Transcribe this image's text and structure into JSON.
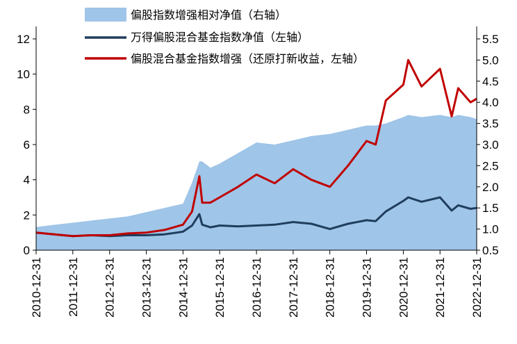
{
  "chart_data": {
    "type": "area",
    "x": [
      "2010-12-31",
      "2011-06-30",
      "2011-12-31",
      "2012-06-30",
      "2012-12-31",
      "2013-06-30",
      "2013-12-31",
      "2014-06-30",
      "2014-12-31",
      "2015-03-31",
      "2015-06-12",
      "2015-07-10",
      "2015-09-30",
      "2015-12-31",
      "2016-06-30",
      "2016-12-31",
      "2017-06-30",
      "2017-12-31",
      "2018-06-30",
      "2018-12-31",
      "2019-06-30",
      "2019-12-31",
      "2020-03-31",
      "2020-07-10",
      "2020-12-31",
      "2021-02-18",
      "2021-06-30",
      "2021-12-31",
      "2022-04-26",
      "2022-06-30",
      "2022-10-31",
      "2022-12-31"
    ],
    "series": [
      {
        "name": "偏股指数增强相对净值（右轴）",
        "axis": "right",
        "color": "#9fc5e8",
        "values": [
          1.05,
          1.1,
          1.15,
          1.2,
          1.25,
          1.3,
          1.4,
          1.5,
          1.6,
          2.1,
          2.6,
          2.6,
          2.45,
          2.55,
          2.8,
          3.05,
          3.0,
          3.1,
          3.2,
          3.25,
          3.35,
          3.45,
          3.45,
          3.5,
          3.65,
          3.7,
          3.65,
          3.7,
          3.65,
          3.7,
          3.65,
          3.6
        ]
      },
      {
        "name": "万得偏股混合基金指数净值（左轴）",
        "axis": "left",
        "color": "#1f3d5c",
        "values": [
          1.0,
          0.9,
          0.8,
          0.85,
          0.8,
          0.85,
          0.85,
          0.9,
          1.05,
          1.4,
          2.05,
          1.45,
          1.3,
          1.4,
          1.35,
          1.4,
          1.45,
          1.6,
          1.5,
          1.2,
          1.5,
          1.7,
          1.65,
          2.2,
          2.8,
          3.0,
          2.75,
          3.0,
          2.25,
          2.55,
          2.35,
          2.4
        ]
      },
      {
        "name": "偏股混合基金指数增强（还原打新收益，左轴）",
        "axis": "left",
        "color": "#c00000",
        "values": [
          1.0,
          0.9,
          0.8,
          0.85,
          0.85,
          0.95,
          1.0,
          1.15,
          1.45,
          2.2,
          4.2,
          2.7,
          2.7,
          3.0,
          3.6,
          4.3,
          3.8,
          4.6,
          4.0,
          3.6,
          4.8,
          6.2,
          6.0,
          8.5,
          9.4,
          10.8,
          9.3,
          10.3,
          7.6,
          9.2,
          8.4,
          8.6
        ]
      }
    ],
    "xticks": [
      "2010-12-31",
      "2011-12-31",
      "2012-12-31",
      "2013-12-31",
      "2014-12-31",
      "2015-12-31",
      "2016-12-31",
      "2017-12-31",
      "2018-12-31",
      "2019-12-31",
      "2020-12-31",
      "2021-12-31",
      "2022-12-31"
    ],
    "yticks_left": [
      "0",
      "2",
      "4",
      "6",
      "8",
      "10",
      "12"
    ],
    "yticks_right": [
      "0.5",
      "1.0",
      "1.5",
      "2.0",
      "2.5",
      "3.0",
      "3.5",
      "4.0",
      "4.5",
      "5.0",
      "5.5"
    ],
    "ylim_left": [
      0,
      12
    ],
    "ylim_right": [
      0.5,
      5.5
    ],
    "legend": "top-center",
    "grid": false
  }
}
